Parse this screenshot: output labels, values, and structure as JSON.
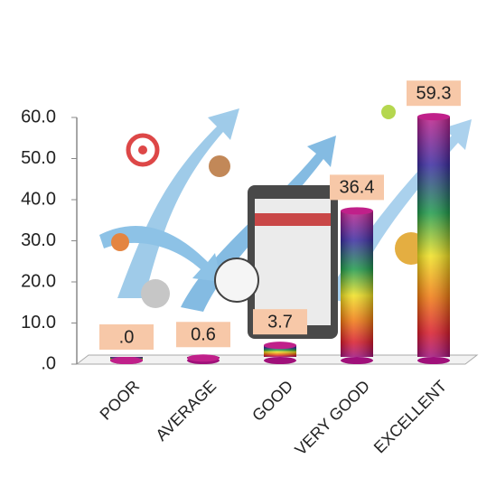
{
  "chart_data": {
    "type": "bar",
    "categories": [
      "POOR",
      "AVERAGE",
      "GOOD",
      "VERY GOOD",
      "EXCELLENT"
    ],
    "values": [
      0,
      0.6,
      3.7,
      36.4,
      59.3
    ],
    "value_labels": [
      ".0",
      "0.6",
      "3.7",
      "36.4",
      "59.3"
    ],
    "ylim": [
      0,
      60
    ],
    "yticks": [
      {
        "value": 0,
        "label": ".0"
      },
      {
        "value": 10,
        "label": "10.0"
      },
      {
        "value": 20,
        "label": "20.0"
      },
      {
        "value": 30,
        "label": "30.0"
      },
      {
        "value": 40,
        "label": "40.0"
      },
      {
        "value": 50,
        "label": "50.0"
      },
      {
        "value": 60,
        "label": "60.0"
      }
    ]
  }
}
